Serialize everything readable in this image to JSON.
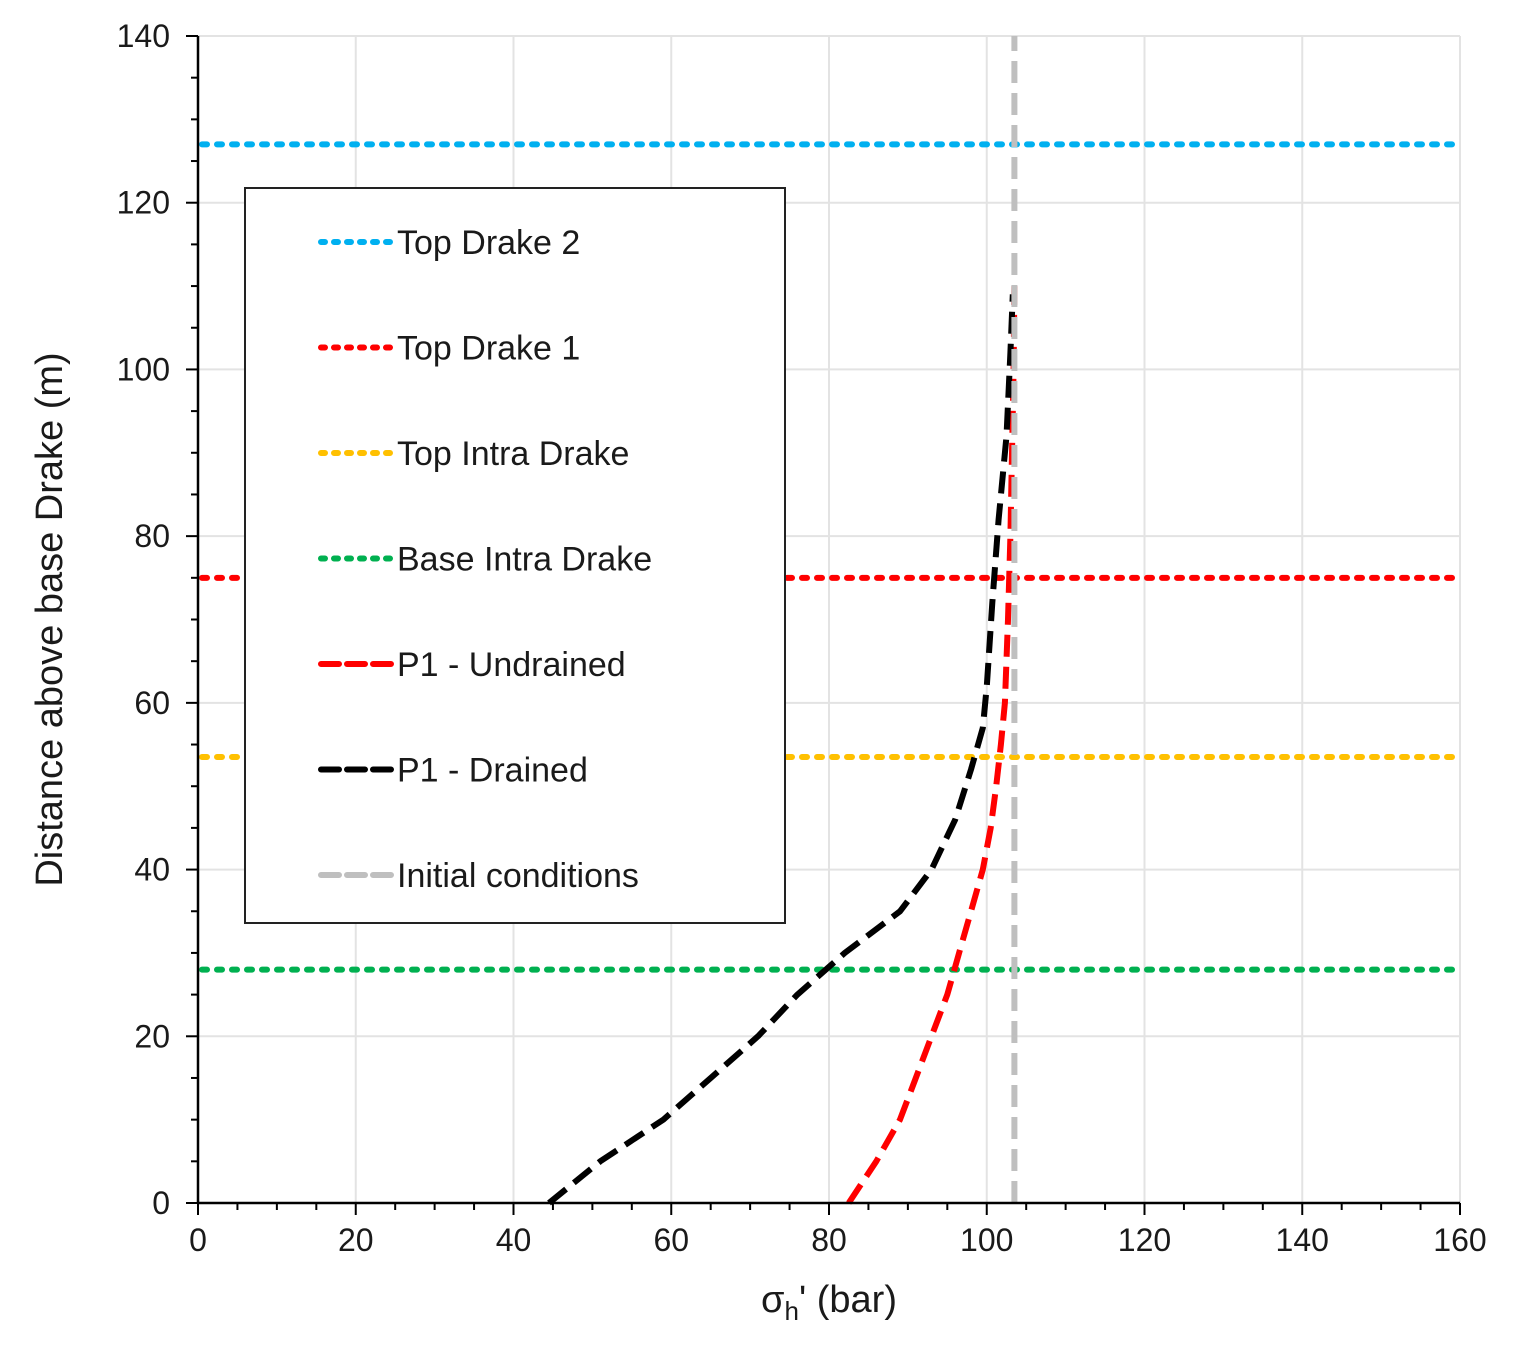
{
  "chart_data": {
    "type": "line",
    "title": "",
    "xlabel": "σh' (bar)",
    "xlabel_parts": {
      "symbol": "σ",
      "subscript": "h",
      "suffix": "' (bar)"
    },
    "ylabel": "Distance above base Drake (m)",
    "xlim": [
      0,
      160
    ],
    "ylim": [
      0,
      140
    ],
    "xticks": [
      0,
      20,
      40,
      60,
      80,
      100,
      120,
      140,
      160
    ],
    "yticks": [
      0,
      20,
      40,
      60,
      80,
      100,
      120,
      140
    ],
    "grid": true,
    "legend_position": "upper-left",
    "horizontal_lines": [
      {
        "name": "Top Drake 2",
        "y": 127,
        "color": "#00b0f0",
        "style": "dotted"
      },
      {
        "name": "Top Drake 1",
        "y": 75,
        "color": "#ff0000",
        "style": "dotted"
      },
      {
        "name": "Top Intra Drake",
        "y": 53.5,
        "color": "#ffc000",
        "style": "dotted"
      },
      {
        "name": "Base Intra Drake",
        "y": 28,
        "color": "#00b050",
        "style": "dotted"
      }
    ],
    "series": [
      {
        "name": "P1 - Undrained",
        "color": "#ff0000",
        "style": "dashed",
        "points": [
          [
            82.5,
            0
          ],
          [
            86,
            5
          ],
          [
            89,
            10
          ],
          [
            91,
            15
          ],
          [
            93,
            20
          ],
          [
            95,
            25
          ],
          [
            96.5,
            30
          ],
          [
            98,
            35
          ],
          [
            99.5,
            40
          ],
          [
            100.5,
            45
          ],
          [
            101.2,
            50
          ],
          [
            101.8,
            55
          ],
          [
            102.3,
            60
          ],
          [
            102.7,
            70
          ],
          [
            103,
            80
          ],
          [
            103.2,
            90
          ],
          [
            103.4,
            100
          ],
          [
            103.5,
            110
          ]
        ]
      },
      {
        "name": "P1 - Drained",
        "color": "#000000",
        "style": "dashed",
        "points": [
          [
            44.5,
            0
          ],
          [
            51,
            5
          ],
          [
            59,
            10
          ],
          [
            65,
            15
          ],
          [
            71,
            20
          ],
          [
            76,
            25
          ],
          [
            82,
            30
          ],
          [
            89,
            35
          ],
          [
            93,
            40
          ],
          [
            96,
            46
          ],
          [
            98,
            52
          ],
          [
            99.5,
            57
          ],
          [
            100,
            62
          ],
          [
            100.7,
            72
          ],
          [
            101.5,
            82
          ],
          [
            102.5,
            92
          ],
          [
            103,
            102
          ],
          [
            103.3,
            109
          ]
        ]
      },
      {
        "name": "Initial conditions",
        "color": "#bfbfbf",
        "style": "dashed",
        "points": [
          [
            103.5,
            0
          ],
          [
            103.5,
            140
          ]
        ]
      }
    ],
    "legend": [
      {
        "label": "Top Drake 2",
        "color": "#00b0f0",
        "style": "dotted"
      },
      {
        "label": "Top Drake 1",
        "color": "#ff0000",
        "style": "dotted"
      },
      {
        "label": "Top Intra Drake",
        "color": "#ffc000",
        "style": "dotted"
      },
      {
        "label": "Base Intra Drake",
        "color": "#00b050",
        "style": "dotted"
      },
      {
        "label": "P1 - Undrained",
        "color": "#ff0000",
        "style": "dashed"
      },
      {
        "label": "P1 - Drained",
        "color": "#000000",
        "style": "dashed"
      },
      {
        "label": "Initial conditions",
        "color": "#bfbfbf",
        "style": "dashed"
      }
    ]
  }
}
